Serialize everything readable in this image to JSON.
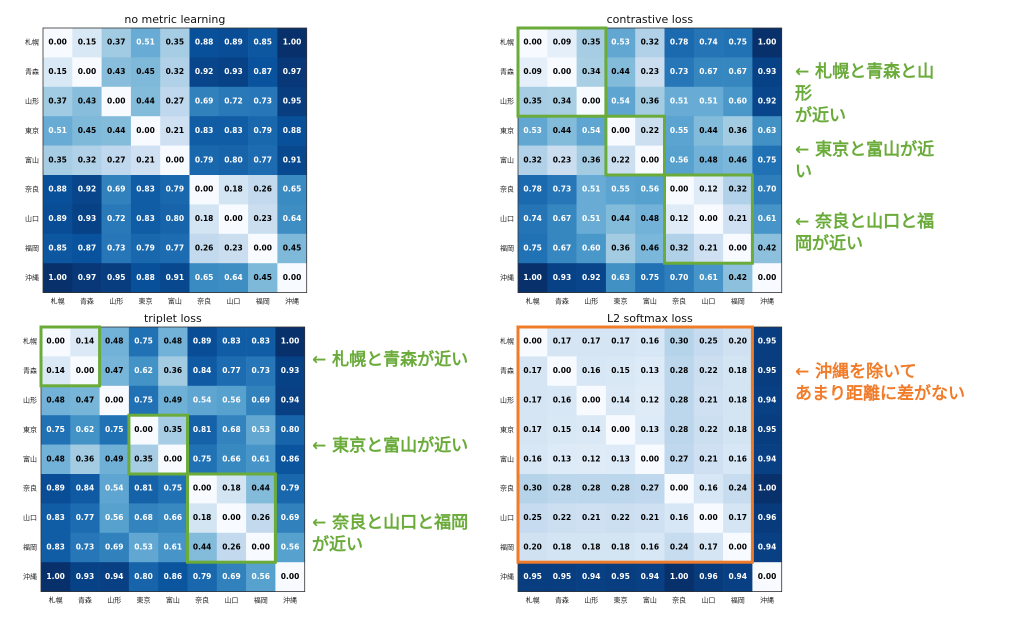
{
  "chart_data": [
    {
      "type": "heatmap",
      "title": "no metric learning",
      "categories": [
        "札幌",
        "青森",
        "山形",
        "東京",
        "富山",
        "奈良",
        "山口",
        "福岡",
        "沖縄"
      ],
      "values": [
        [
          0,
          0.15,
          0.37,
          0.51,
          0.35,
          0.88,
          0.89,
          0.85,
          1
        ],
        [
          0.15,
          0,
          0.43,
          0.45,
          0.32,
          0.92,
          0.93,
          0.87,
          0.97
        ],
        [
          0.37,
          0.43,
          0,
          0.44,
          0.27,
          0.69,
          0.72,
          0.73,
          0.95
        ],
        [
          0.51,
          0.45,
          0.44,
          0,
          0.21,
          0.83,
          0.83,
          0.79,
          0.88
        ],
        [
          0.35,
          0.32,
          0.27,
          0.21,
          0,
          0.79,
          0.8,
          0.77,
          0.91
        ],
        [
          0.88,
          0.92,
          0.69,
          0.83,
          0.79,
          0,
          0.18,
          0.26,
          0.65
        ],
        [
          0.89,
          0.93,
          0.72,
          0.83,
          0.8,
          0.18,
          0,
          0.23,
          0.64
        ],
        [
          0.85,
          0.87,
          0.73,
          0.79,
          0.77,
          0.26,
          0.23,
          0,
          0.45
        ],
        [
          1,
          0.97,
          0.95,
          0.88,
          0.91,
          0.65,
          0.64,
          0.45,
          0
        ]
      ],
      "value_labels": [
        [
          "0.00",
          "0.15",
          "0.37",
          "0.51",
          "0.35",
          "0.88",
          "0.89",
          "0.85",
          "1.00"
        ],
        [
          "0.15",
          "0.00",
          "0.43",
          "0.45",
          "0.32",
          "0.92",
          "0.93",
          "0.87",
          "0.97"
        ],
        [
          "0.37",
          "0.43",
          "0.00",
          "0.44",
          "0.27",
          "0.69",
          "0.72",
          "0.73",
          "0.95"
        ],
        [
          "0.51",
          "0.45",
          "0.44",
          "0.00",
          "0.21",
          "0.83",
          "0.83",
          "0.79",
          "0.88"
        ],
        [
          "0.35",
          "0.32",
          "0.27",
          "0.21",
          "0.00",
          "0.79",
          "0.80",
          "0.77",
          "0.91"
        ],
        [
          "0.88",
          "0.92",
          "0.69",
          "0.83",
          "0.79",
          "0.00",
          "0.18",
          "0.26",
          "0.65"
        ],
        [
          "0.89",
          "0.93",
          "0.72",
          "0.83",
          "0.80",
          "0.18",
          "0.00",
          "0.23",
          "0.64"
        ],
        [
          "0.85",
          "0.87",
          "0.73",
          "0.79",
          "0.77",
          "0.26",
          "0.23",
          "0.00",
          "0.45"
        ],
        [
          "1.00",
          "0.97",
          "0.95",
          "0.88",
          "0.91",
          "0.65",
          "0.64",
          "0.45",
          "0.00"
        ]
      ],
      "highlights": [],
      "annotations": []
    },
    {
      "type": "heatmap",
      "title": "contrastive loss",
      "categories": [
        "札幌",
        "青森",
        "山形",
        "東京",
        "富山",
        "奈良",
        "山口",
        "福岡",
        "沖縄"
      ],
      "values": [
        [
          0,
          0.09,
          0.35,
          0.53,
          0.32,
          0.78,
          0.74,
          0.75,
          1
        ],
        [
          0.09,
          0,
          0.34,
          0.44,
          0.23,
          0.73,
          0.67,
          0.67,
          0.93
        ],
        [
          0.35,
          0.34,
          0,
          0.54,
          0.36,
          0.51,
          0.51,
          0.6,
          0.92
        ],
        [
          0.53,
          0.44,
          0.54,
          0,
          0.22,
          0.55,
          0.44,
          0.36,
          0.63
        ],
        [
          0.32,
          0.23,
          0.36,
          0.22,
          0,
          0.56,
          0.48,
          0.46,
          0.75
        ],
        [
          0.78,
          0.73,
          0.51,
          0.55,
          0.56,
          0,
          0.12,
          0.32,
          0.7
        ],
        [
          0.74,
          0.67,
          0.51,
          0.44,
          0.48,
          0.12,
          0,
          0.21,
          0.61
        ],
        [
          0.75,
          0.67,
          0.6,
          0.36,
          0.46,
          0.32,
          0.21,
          0,
          0.42
        ],
        [
          1,
          0.93,
          0.92,
          0.63,
          0.75,
          0.7,
          0.61,
          0.42,
          0
        ]
      ],
      "value_labels": [
        [
          "0.00",
          "0.09",
          "0.35",
          "0.53",
          "0.32",
          "0.78",
          "0.74",
          "0.75",
          "1.00"
        ],
        [
          "0.09",
          "0.00",
          "0.34",
          "0.44",
          "0.23",
          "0.73",
          "0.67",
          "0.67",
          "0.93"
        ],
        [
          "0.35",
          "0.34",
          "0.00",
          "0.54",
          "0.36",
          "0.51",
          "0.51",
          "0.60",
          "0.92"
        ],
        [
          "0.53",
          "0.44",
          "0.54",
          "0.00",
          "0.22",
          "0.55",
          "0.44",
          "0.36",
          "0.63"
        ],
        [
          "0.32",
          "0.23",
          "0.36",
          "0.22",
          "0.00",
          "0.56",
          "0.48",
          "0.46",
          "0.75"
        ],
        [
          "0.78",
          "0.73",
          "0.51",
          "0.55",
          "0.56",
          "0.00",
          "0.12",
          "0.32",
          "0.70"
        ],
        [
          "0.74",
          "0.67",
          "0.51",
          "0.44",
          "0.48",
          "0.12",
          "0.00",
          "0.21",
          "0.61"
        ],
        [
          "0.75",
          "0.67",
          "0.60",
          "0.36",
          "0.46",
          "0.32",
          "0.21",
          "0.00",
          "0.42"
        ],
        [
          "1.00",
          "0.93",
          "0.92",
          "0.63",
          "0.75",
          "0.70",
          "0.61",
          "0.42",
          "0.00"
        ]
      ],
      "highlights": [
        [
          0,
          2
        ],
        [
          3,
          4
        ],
        [
          5,
          7
        ]
      ],
      "highlight_color": "#6aab3a",
      "annotations": [
        {
          "lines": [
            "← 札幌と青森と山",
            "形",
            "が近い"
          ],
          "color": "#6aab3a"
        },
        {
          "lines": [
            "← 東京と富山が近",
            "い"
          ],
          "color": "#6aab3a"
        },
        {
          "lines": [
            "← 奈良と山口と福",
            "岡が近い"
          ],
          "color": "#6aab3a"
        }
      ]
    },
    {
      "type": "heatmap",
      "title": "triplet loss",
      "categories": [
        "札幌",
        "青森",
        "山形",
        "東京",
        "富山",
        "奈良",
        "山口",
        "福岡",
        "沖縄"
      ],
      "values": [
        [
          0,
          0.14,
          0.48,
          0.75,
          0.48,
          0.89,
          0.83,
          0.83,
          1
        ],
        [
          0.14,
          0,
          0.47,
          0.62,
          0.36,
          0.84,
          0.77,
          0.73,
          0.93
        ],
        [
          0.48,
          0.47,
          0,
          0.75,
          0.49,
          0.54,
          0.56,
          0.69,
          0.94
        ],
        [
          0.75,
          0.62,
          0.75,
          0,
          0.35,
          0.81,
          0.68,
          0.53,
          0.8
        ],
        [
          0.48,
          0.36,
          0.49,
          0.35,
          0,
          0.75,
          0.66,
          0.61,
          0.86
        ],
        [
          0.89,
          0.84,
          0.54,
          0.81,
          0.75,
          0,
          0.18,
          0.44,
          0.79
        ],
        [
          0.83,
          0.77,
          0.56,
          0.68,
          0.66,
          0.18,
          0,
          0.26,
          0.69
        ],
        [
          0.83,
          0.73,
          0.69,
          0.53,
          0.61,
          0.44,
          0.26,
          0,
          0.56
        ],
        [
          1,
          0.93,
          0.94,
          0.8,
          0.86,
          0.79,
          0.69,
          0.56,
          0
        ]
      ],
      "value_labels": [
        [
          "0.00",
          "0.14",
          "0.48",
          "0.75",
          "0.48",
          "0.89",
          "0.83",
          "0.83",
          "1.00"
        ],
        [
          "0.14",
          "0.00",
          "0.47",
          "0.62",
          "0.36",
          "0.84",
          "0.77",
          "0.73",
          "0.93"
        ],
        [
          "0.48",
          "0.47",
          "0.00",
          "0.75",
          "0.49",
          "0.54",
          "0.56",
          "0.69",
          "0.94"
        ],
        [
          "0.75",
          "0.62",
          "0.75",
          "0.00",
          "0.35",
          "0.81",
          "0.68",
          "0.53",
          "0.80"
        ],
        [
          "0.48",
          "0.36",
          "0.49",
          "0.35",
          "0.00",
          "0.75",
          "0.66",
          "0.61",
          "0.86"
        ],
        [
          "0.89",
          "0.84",
          "0.54",
          "0.81",
          "0.75",
          "0.00",
          "0.18",
          "0.44",
          "0.79"
        ],
        [
          "0.83",
          "0.77",
          "0.56",
          "0.68",
          "0.66",
          "0.18",
          "0.00",
          "0.26",
          "0.69"
        ],
        [
          "0.83",
          "0.73",
          "0.69",
          "0.53",
          "0.61",
          "0.44",
          "0.26",
          "0.00",
          "0.56"
        ],
        [
          "1.00",
          "0.93",
          "0.94",
          "0.80",
          "0.86",
          "0.79",
          "0.69",
          "0.56",
          "0.00"
        ]
      ],
      "highlights": [
        [
          0,
          1
        ],
        [
          3,
          4
        ],
        [
          5,
          7
        ]
      ],
      "highlight_color": "#6aab3a",
      "annotations": [
        {
          "lines": [
            "← 札幌と青森が近い"
          ],
          "color": "#6aab3a"
        },
        {
          "lines": [
            "← 東京と富山が近い"
          ],
          "color": "#6aab3a"
        },
        {
          "lines": [
            "← 奈良と山口と福岡",
            "が近い"
          ],
          "color": "#6aab3a"
        }
      ]
    },
    {
      "type": "heatmap",
      "title": "L2 softmax loss",
      "categories": [
        "札幌",
        "青森",
        "山形",
        "東京",
        "富山",
        "奈良",
        "山口",
        "福岡",
        "沖縄"
      ],
      "values": [
        [
          0,
          0.17,
          0.17,
          0.17,
          0.16,
          0.3,
          0.25,
          0.2,
          0.95
        ],
        [
          0.17,
          0,
          0.16,
          0.15,
          0.13,
          0.28,
          0.22,
          0.18,
          0.95
        ],
        [
          0.17,
          0.16,
          0,
          0.14,
          0.12,
          0.28,
          0.21,
          0.18,
          0.94
        ],
        [
          0.17,
          0.15,
          0.14,
          0,
          0.13,
          0.28,
          0.22,
          0.18,
          0.95
        ],
        [
          0.16,
          0.13,
          0.12,
          0.13,
          0,
          0.27,
          0.21,
          0.16,
          0.94
        ],
        [
          0.3,
          0.28,
          0.28,
          0.28,
          0.27,
          0,
          0.16,
          0.24,
          1
        ],
        [
          0.25,
          0.22,
          0.21,
          0.22,
          0.21,
          0.16,
          0,
          0.17,
          0.96
        ],
        [
          0.2,
          0.18,
          0.18,
          0.18,
          0.16,
          0.24,
          0.17,
          0,
          0.94
        ],
        [
          0.95,
          0.95,
          0.94,
          0.95,
          0.94,
          1,
          0.96,
          0.94,
          0
        ]
      ],
      "value_labels": [
        [
          "0.00",
          "0.17",
          "0.17",
          "0.17",
          "0.16",
          "0.30",
          "0.25",
          "0.20",
          "0.95"
        ],
        [
          "0.17",
          "0.00",
          "0.16",
          "0.15",
          "0.13",
          "0.28",
          "0.22",
          "0.18",
          "0.95"
        ],
        [
          "0.17",
          "0.16",
          "0.00",
          "0.14",
          "0.12",
          "0.28",
          "0.21",
          "0.18",
          "0.94"
        ],
        [
          "0.17",
          "0.15",
          "0.14",
          "0.00",
          "0.13",
          "0.28",
          "0.22",
          "0.18",
          "0.95"
        ],
        [
          "0.16",
          "0.13",
          "0.12",
          "0.13",
          "0.00",
          "0.27",
          "0.21",
          "0.16",
          "0.94"
        ],
        [
          "0.30",
          "0.28",
          "0.28",
          "0.28",
          "0.27",
          "0.00",
          "0.16",
          "0.24",
          "1.00"
        ],
        [
          "0.25",
          "0.22",
          "0.21",
          "0.22",
          "0.21",
          "0.16",
          "0.00",
          "0.17",
          "0.96"
        ],
        [
          "0.20",
          "0.18",
          "0.18",
          "0.18",
          "0.16",
          "0.24",
          "0.17",
          "0.00",
          "0.94"
        ],
        [
          "0.95",
          "0.95",
          "0.94",
          "0.95",
          "0.94",
          "1.00",
          "0.96",
          "0.94",
          "0.00"
        ]
      ],
      "highlights": [
        [
          0,
          7
        ]
      ],
      "highlight_color": "#f07c2a",
      "annotations": [
        {
          "lines": [
            "← 沖縄を除いて",
            "あまり距離に差がない"
          ],
          "color": "#f07c2a"
        }
      ]
    }
  ]
}
